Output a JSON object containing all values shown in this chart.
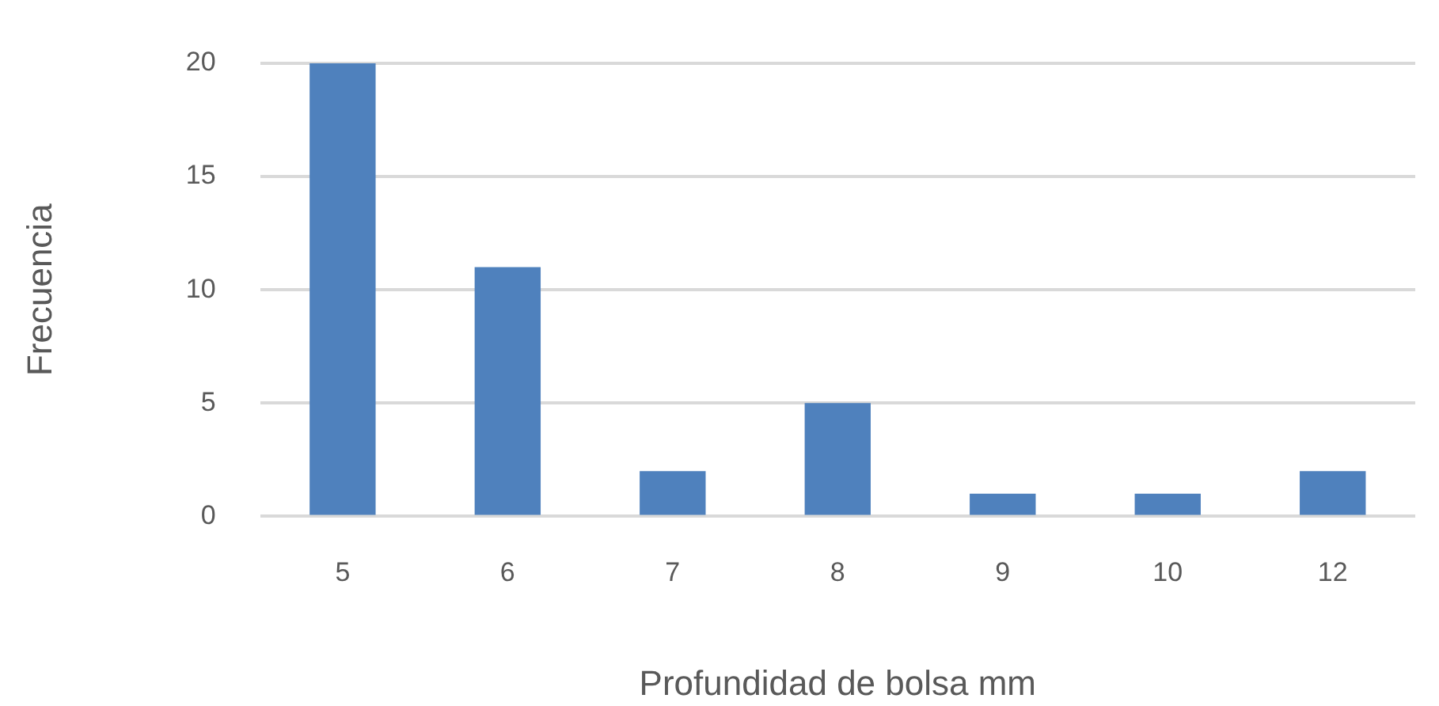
{
  "chart_data": {
    "type": "bar",
    "xlabel": "Profundidad de bolsa mm",
    "ylabel": "Frecuencia",
    "categories": [
      "5",
      "6",
      "7",
      "8",
      "9",
      "10",
      "12"
    ],
    "values": [
      20,
      11,
      2,
      5,
      1,
      1,
      2
    ],
    "color": "#4f81bd",
    "ylim": [
      0,
      20
    ],
    "yticks": [
      0,
      5,
      10,
      15,
      20
    ],
    "grid": "y"
  }
}
